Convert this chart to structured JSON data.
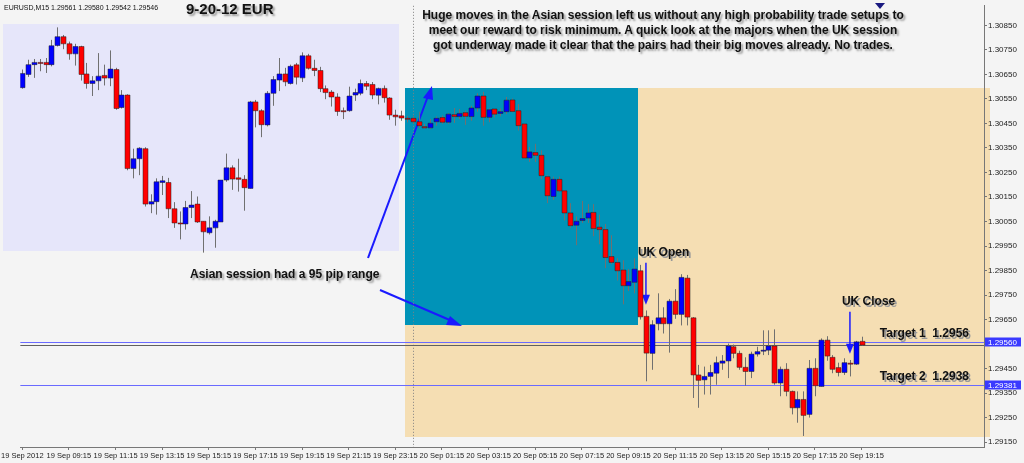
{
  "chart_data": {
    "type": "candlestick",
    "title": "9-20-12  EUR",
    "subtitle": "EURUSD,M15  1.29561 1.29580 1.29542 1.29546",
    "annotations": [
      "Asian session had a 95 pip range",
      "Huge moves in the Asian session left us without any high probability trade setups to meet our reward to risk minimum.  A quick look at the majors when the UK session got underway made it clear that the pairs had their big moves already.  No trades.",
      {
        "text": "UK Open",
        "x": "2012-09-20T10:00",
        "y": 1.2971
      },
      {
        "text": "UK Close",
        "x": "2012-09-20T18:45",
        "y": 1.2951
      },
      "1.29560",
      "1.29381"
    ],
    "x": [
      "2012-09-19T07:15",
      "2012-09-19T07:30",
      "2012-09-19T07:45",
      "2012-09-19T08:00",
      "2012-09-19T08:15",
      "2012-09-19T08:30",
      "2012-09-19T08:45",
      "2012-09-19T09:00",
      "2012-09-19T09:15",
      "2012-09-19T09:30",
      "2012-09-19T09:45",
      "2012-09-19T10:00",
      "2012-09-19T10:15",
      "2012-09-19T10:30",
      "2012-09-19T10:45",
      "2012-09-19T11:00",
      "2012-09-19T11:15",
      "2012-09-19T11:30",
      "2012-09-19T11:45",
      "2012-09-19T12:00",
      "2012-09-19T12:15",
      "2012-09-19T12:30",
      "2012-09-19T12:45",
      "2012-09-19T13:00",
      "2012-09-19T13:15",
      "2012-09-19T13:30",
      "2012-09-19T13:45",
      "2012-09-19T14:00",
      "2012-09-19T14:15",
      "2012-09-19T14:30",
      "2012-09-19T14:45",
      "2012-09-19T15:00",
      "2012-09-19T15:15",
      "2012-09-19T15:30",
      "2012-09-19T15:45",
      "2012-09-19T16:00",
      "2012-09-19T16:15",
      "2012-09-19T16:30",
      "2012-09-19T16:45",
      "2012-09-19T17:00",
      "2012-09-19T17:15",
      "2012-09-19T17:30",
      "2012-09-19T17:45",
      "2012-09-19T18:00",
      "2012-09-19T18:15",
      "2012-09-19T18:30",
      "2012-09-19T18:45",
      "2012-09-19T19:00",
      "2012-09-19T19:15",
      "2012-09-19T19:30",
      "2012-09-19T19:45",
      "2012-09-19T20:00",
      "2012-09-19T20:15",
      "2012-09-19T20:30",
      "2012-09-19T20:45",
      "2012-09-19T21:00",
      "2012-09-19T21:15",
      "2012-09-19T21:30",
      "2012-09-19T21:45",
      "2012-09-19T22:00",
      "2012-09-19T22:15",
      "2012-09-19T22:30",
      "2012-09-19T22:45",
      "2012-09-19T23:00",
      "2012-09-19T23:15",
      "2012-09-19T23:30",
      "2012-09-19T23:45",
      "2012-09-20T00:00",
      "2012-09-20T00:15",
      "2012-09-20T00:30",
      "2012-09-20T00:45",
      "2012-09-20T01:00",
      "2012-09-20T01:15",
      "2012-09-20T01:30",
      "2012-09-20T01:45",
      "2012-09-20T02:00",
      "2012-09-20T02:15",
      "2012-09-20T02:30",
      "2012-09-20T02:45",
      "2012-09-20T03:00",
      "2012-09-20T03:15",
      "2012-09-20T03:30",
      "2012-09-20T03:45",
      "2012-09-20T04:00",
      "2012-09-20T04:15",
      "2012-09-20T04:30",
      "2012-09-20T04:45",
      "2012-09-20T05:00",
      "2012-09-20T05:15",
      "2012-09-20T05:30",
      "2012-09-20T05:45",
      "2012-09-20T06:00",
      "2012-09-20T06:15",
      "2012-09-20T06:30",
      "2012-09-20T06:45",
      "2012-09-20T07:00",
      "2012-09-20T07:15",
      "2012-09-20T07:30",
      "2012-09-20T07:45",
      "2012-09-20T08:00",
      "2012-09-20T08:15",
      "2012-09-20T08:30",
      "2012-09-20T08:45",
      "2012-09-20T09:00",
      "2012-09-20T09:15",
      "2012-09-20T09:30",
      "2012-09-20T09:45",
      "2012-09-20T10:00",
      "2012-09-20T10:15",
      "2012-09-20T10:30",
      "2012-09-20T10:45",
      "2012-09-20T11:00",
      "2012-09-20T11:15",
      "2012-09-20T11:30",
      "2012-09-20T11:45",
      "2012-09-20T12:00",
      "2012-09-20T12:15",
      "2012-09-20T12:30",
      "2012-09-20T12:45",
      "2012-09-20T13:00",
      "2012-09-20T13:15",
      "2012-09-20T13:30",
      "2012-09-20T13:45",
      "2012-09-20T14:00",
      "2012-09-20T14:15",
      "2012-09-20T14:30",
      "2012-09-20T14:45",
      "2012-09-20T15:00",
      "2012-09-20T15:15",
      "2012-09-20T15:30",
      "2012-09-20T15:45",
      "2012-09-20T16:00",
      "2012-09-20T16:15",
      "2012-09-20T16:30",
      "2012-09-20T16:45",
      "2012-09-20T17:00",
      "2012-09-20T17:15",
      "2012-09-20T17:30",
      "2012-09-20T17:45",
      "2012-09-20T18:00",
      "2012-09-20T18:15",
      "2012-09-20T18:30",
      "2012-09-20T18:45",
      "2012-09-20T19:00",
      "2012-09-20T19:15"
    ],
    "ohlc": [
      [
        1.30596,
        1.3067,
        1.30592,
        1.30654
      ],
      [
        1.3065,
        1.3071,
        1.3064,
        1.3069
      ],
      [
        1.3069,
        1.30713,
        1.30636,
        1.30699
      ],
      [
        1.30699,
        1.30713,
        1.30663,
        1.30698
      ],
      [
        1.30699,
        1.30717,
        1.30656,
        1.3069
      ],
      [
        1.3069,
        1.30791,
        1.30683,
        1.30767
      ],
      [
        1.30768,
        1.30842,
        1.30764,
        1.30804
      ],
      [
        1.30804,
        1.30811,
        1.30753,
        1.30775
      ],
      [
        1.30775,
        1.30784,
        1.3071,
        1.30734
      ],
      [
        1.30734,
        1.30775,
        1.30686,
        1.30764
      ],
      [
        1.30764,
        1.30767,
        1.30625,
        1.3065
      ],
      [
        1.30652,
        1.30697,
        1.30592,
        1.30613
      ],
      [
        1.30613,
        1.30643,
        1.30562,
        1.30624
      ],
      [
        1.30624,
        1.30737,
        1.30586,
        1.30643
      ],
      [
        1.30646,
        1.3069,
        1.30605,
        1.30635
      ],
      [
        1.30635,
        1.30748,
        1.30602,
        1.30672
      ],
      [
        1.3067,
        1.30677,
        1.30506,
        1.30511
      ],
      [
        1.30515,
        1.30586,
        1.30511,
        1.30566
      ],
      [
        1.30566,
        1.30569,
        1.30259,
        1.30266
      ],
      [
        1.30266,
        1.30347,
        1.30226,
        1.30306
      ],
      [
        1.30306,
        1.30353,
        1.30239,
        1.30349
      ],
      [
        1.30347,
        1.30353,
        1.30111,
        1.30121
      ],
      [
        1.30121,
        1.30161,
        1.30084,
        1.30131
      ],
      [
        1.30131,
        1.30226,
        1.30078,
        1.30212
      ],
      [
        1.30209,
        1.30236,
        1.30158,
        1.30216
      ],
      [
        1.30209,
        1.30228,
        1.30064,
        1.30102
      ],
      [
        1.30102,
        1.30129,
        1.30024,
        1.30044
      ],
      [
        1.30044,
        1.30091,
        1.29977,
        1.30041
      ],
      [
        1.3004,
        1.30134,
        1.30017,
        1.30107
      ],
      [
        1.30107,
        1.30174,
        1.30064,
        1.30117
      ],
      [
        1.30121,
        1.30152,
        1.30044,
        1.30048
      ],
      [
        1.30051,
        1.30051,
        1.29923,
        1.30008
      ],
      [
        1.30004,
        1.30071,
        1.29997,
        1.30024
      ],
      [
        1.30024,
        1.30057,
        1.29943,
        1.30051
      ],
      [
        1.30048,
        1.30219,
        1.30048,
        1.30219
      ],
      [
        1.30219,
        1.30327,
        1.30212,
        1.30269
      ],
      [
        1.30269,
        1.30279,
        1.30179,
        1.30223
      ],
      [
        1.30228,
        1.30306,
        1.30172,
        1.30222
      ],
      [
        1.30222,
        1.30239,
        1.30094,
        1.30188
      ],
      [
        1.30185,
        1.30542,
        1.30185,
        1.30538
      ],
      [
        1.30538,
        1.30546,
        1.30434,
        1.30502
      ],
      [
        1.30502,
        1.30508,
        1.30394,
        1.30445
      ],
      [
        1.30444,
        1.30582,
        1.30438,
        1.30573
      ],
      [
        1.30573,
        1.30643,
        1.30522,
        1.30629
      ],
      [
        1.30627,
        1.30717,
        1.30582,
        1.30652
      ],
      [
        1.30652,
        1.30677,
        1.30602,
        1.3062
      ],
      [
        1.30613,
        1.3069,
        1.30609,
        1.30683
      ],
      [
        1.30689,
        1.30697,
        1.30609,
        1.30639
      ],
      [
        1.30636,
        1.3074,
        1.30619,
        1.30726
      ],
      [
        1.30726,
        1.30734,
        1.3067,
        1.30675
      ],
      [
        1.30675,
        1.3071,
        1.30643,
        1.30666
      ],
      [
        1.30666,
        1.30681,
        1.30578,
        1.30592
      ],
      [
        1.30592,
        1.30605,
        1.30549,
        1.30576
      ],
      [
        1.30578,
        1.30586,
        1.30519,
        1.30558
      ],
      [
        1.30558,
        1.30573,
        1.30481,
        1.30499
      ],
      [
        1.30502,
        1.30515,
        1.30468,
        1.305
      ],
      [
        1.30502,
        1.306,
        1.30498,
        1.30562
      ],
      [
        1.30566,
        1.30592,
        1.30542,
        1.30576
      ],
      [
        1.30573,
        1.30629,
        1.30565,
        1.30613
      ],
      [
        1.30613,
        1.30623,
        1.30586,
        1.30602
      ],
      [
        1.30609,
        1.30619,
        1.30549,
        1.30566
      ],
      [
        1.30565,
        1.30596,
        1.30528,
        1.30593
      ],
      [
        1.30593,
        1.30605,
        1.30535,
        1.30555
      ],
      [
        1.30554,
        1.30557,
        1.30465,
        1.30484
      ],
      [
        1.30484,
        1.30506,
        1.30441,
        1.30477
      ],
      [
        1.30481,
        1.30502,
        1.30461,
        1.30472
      ],
      [
        1.30471,
        1.30481,
        1.30454,
        1.30469
      ],
      [
        1.30471,
        1.30481,
        1.30448,
        1.30457
      ],
      [
        1.30457,
        1.30498,
        1.3043,
        1.30441
      ],
      [
        1.30437,
        1.30448,
        1.30428,
        1.30432
      ],
      [
        1.30432,
        1.30468,
        1.30428,
        1.30451
      ],
      [
        1.30457,
        1.30479,
        1.30441,
        1.30471
      ],
      [
        1.30474,
        1.30482,
        1.30448,
        1.30455
      ],
      [
        1.30455,
        1.30492,
        1.30448,
        1.30488
      ],
      [
        1.30486,
        1.30513,
        1.30452,
        1.30478
      ],
      [
        1.30478,
        1.30509,
        1.30468,
        1.30491
      ],
      [
        1.30494,
        1.30502,
        1.30444,
        1.30479
      ],
      [
        1.30478,
        1.30522,
        1.30461,
        1.30513
      ],
      [
        1.30513,
        1.30573,
        1.30498,
        1.30562
      ],
      [
        1.30562,
        1.30579,
        1.30441,
        1.30475
      ],
      [
        1.30475,
        1.30511,
        1.30455,
        1.30506
      ],
      [
        1.30509,
        1.30511,
        1.30475,
        1.30488
      ],
      [
        1.30491,
        1.30511,
        1.30479,
        1.30498
      ],
      [
        1.30498,
        1.30558,
        1.30488,
        1.30545
      ],
      [
        1.30546,
        1.30552,
        1.30495,
        1.30499
      ],
      [
        1.30502,
        1.30529,
        1.30421,
        1.30441
      ],
      [
        1.30448,
        1.30451,
        1.30307,
        1.30309
      ],
      [
        1.30309,
        1.30354,
        1.30293,
        1.30334
      ],
      [
        1.30331,
        1.30367,
        1.30293,
        1.3032
      ],
      [
        1.3032,
        1.3034,
        1.30223,
        1.30237
      ],
      [
        1.30233,
        1.30239,
        1.30125,
        1.30155
      ],
      [
        1.30152,
        1.30233,
        1.30138,
        1.30222
      ],
      [
        1.30222,
        1.30233,
        1.30169,
        1.30175
      ],
      [
        1.30175,
        1.30179,
        1.30054,
        1.30085
      ],
      [
        1.30085,
        1.30125,
        1.30024,
        1.30033
      ],
      [
        1.30035,
        1.30071,
        1.29953,
        1.30051
      ],
      [
        1.30054,
        1.30134,
        1.30044,
        1.30062
      ],
      [
        1.30064,
        1.30121,
        1.30044,
        1.30085
      ],
      [
        1.30087,
        1.30121,
        1.2999,
        1.30021
      ],
      [
        1.30027,
        1.30078,
        1.29957,
        1.30017
      ],
      [
        1.30017,
        1.3004,
        1.2986,
        1.29903
      ],
      [
        1.29907,
        1.29994,
        1.29876,
        1.29883
      ],
      [
        1.29883,
        1.299,
        1.29809,
        1.29849
      ],
      [
        1.29852,
        1.29892,
        1.29712,
        1.29788
      ],
      [
        1.29788,
        1.29856,
        1.29766,
        1.29805
      ],
      [
        1.29802,
        1.299,
        1.29757,
        1.29856
      ],
      [
        1.29849,
        1.29873,
        1.2965,
        1.29661
      ],
      [
        1.29663,
        1.29687,
        1.29398,
        1.29513
      ],
      [
        1.29512,
        1.29647,
        1.29445,
        1.29629
      ],
      [
        1.29633,
        1.29757,
        1.29606,
        1.29657
      ],
      [
        1.29657,
        1.297,
        1.29593,
        1.29633
      ],
      [
        1.29633,
        1.29734,
        1.29515,
        1.29725
      ],
      [
        1.29725,
        1.29774,
        1.29653,
        1.29671
      ],
      [
        1.29671,
        1.29835,
        1.29626,
        1.29822
      ],
      [
        1.29819,
        1.29832,
        1.29626,
        1.2966
      ],
      [
        1.29657,
        1.2966,
        1.2933,
        1.29424
      ],
      [
        1.29424,
        1.29465,
        1.2929,
        1.29402
      ],
      [
        1.29404,
        1.29458,
        1.29344,
        1.29418
      ],
      [
        1.29418,
        1.29465,
        1.29344,
        1.29434
      ],
      [
        1.29431,
        1.29499,
        1.29384,
        1.29474
      ],
      [
        1.29472,
        1.29505,
        1.29445,
        1.29481
      ],
      [
        1.29481,
        1.29552,
        1.29411,
        1.29542
      ],
      [
        1.29539,
        1.29548,
        1.29492,
        1.29512
      ],
      [
        1.29512,
        1.29523,
        1.29445,
        1.29455
      ],
      [
        1.29455,
        1.29496,
        1.2938,
        1.29438
      ],
      [
        1.29438,
        1.29519,
        1.29411,
        1.29509
      ],
      [
        1.29509,
        1.29539,
        1.29499,
        1.29519
      ],
      [
        1.29521,
        1.29606,
        1.29505,
        1.29525
      ],
      [
        1.29525,
        1.29606,
        1.29505,
        1.29542
      ],
      [
        1.29542,
        1.2961,
        1.29384,
        1.29391
      ],
      [
        1.29391,
        1.29458,
        1.29337,
        1.29447
      ],
      [
        1.29447,
        1.29472,
        1.29337,
        1.29357
      ],
      [
        1.29357,
        1.2936,
        1.29263,
        1.2929
      ],
      [
        1.2929,
        1.29357,
        1.29229,
        1.29324
      ],
      [
        1.29324,
        1.29357,
        1.29175,
        1.29259
      ],
      [
        1.29263,
        1.29485,
        1.2925,
        1.29451
      ],
      [
        1.29451,
        1.29492,
        1.29337,
        1.2938
      ],
      [
        1.29377,
        1.29573,
        1.29377,
        1.29566
      ],
      [
        1.29566,
        1.29582,
        1.29482,
        1.29501
      ],
      [
        1.29496,
        1.29505,
        1.29431,
        1.29447
      ],
      [
        1.29454,
        1.29474,
        1.29418,
        1.29434
      ],
      [
        1.29434,
        1.29492,
        1.29424,
        1.29474
      ],
      [
        1.29472,
        1.29485,
        1.29418,
        1.2947
      ],
      [
        1.29468,
        1.29563,
        1.29465,
        1.29559
      ],
      [
        1.29561,
        1.2958,
        1.29542,
        1.29546
      ]
    ],
    "colors": [
      "#0000ff",
      "#0000ff",
      "#0000ff",
      "#ff0000",
      "#ff0000",
      "#0000ff",
      "#0000ff",
      "#ff0000",
      "#ff0000",
      "#0000ff",
      "#ff0000",
      "#ff0000",
      "#0000ff",
      "#0000ff",
      "#ff0000",
      "#0000ff",
      "#ff0000",
      "#0000ff",
      "#ff0000",
      "#0000ff",
      "#0000ff",
      "#ff0000",
      "#0000ff",
      "#0000ff",
      "#0000ff",
      "#ff0000",
      "#ff0000",
      "#ff0000",
      "#0000ff",
      "#0000ff",
      "#ff0000",
      "#ff0000",
      "#0000ff",
      "#0000ff",
      "#0000ff",
      "#0000ff",
      "#ff0000",
      "#ff0000",
      "#ff0000",
      "#0000ff",
      "#ff0000",
      "#ff0000",
      "#0000ff",
      "#0000ff",
      "#0000ff",
      "#ff0000",
      "#0000ff",
      "#ff0000",
      "#0000ff",
      "#ff0000",
      "#ff0000",
      "#ff0000",
      "#ff0000",
      "#ff0000",
      "#ff0000",
      "#ff0000",
      "#0000ff",
      "#0000ff",
      "#0000ff",
      "#ff0000",
      "#ff0000",
      "#0000ff",
      "#ff0000",
      "#ff0000",
      "#ff0000",
      "#ff0000",
      "#ff0000",
      "#ff0000",
      "#ff0000",
      "#ff0000",
      "#0000ff",
      "#0000ff",
      "#ff0000",
      "#0000ff",
      "#ff0000",
      "#0000ff",
      "#ff0000",
      "#0000ff",
      "#0000ff",
      "#ff0000",
      "#0000ff",
      "#ff0000",
      "#0000ff",
      "#0000ff",
      "#ff0000",
      "#ff0000",
      "#ff0000",
      "#0000ff",
      "#ff0000",
      "#ff0000",
      "#ff0000",
      "#0000ff",
      "#ff0000",
      "#ff0000",
      "#ff0000",
      "#0000ff",
      "#0000ff",
      "#0000ff",
      "#ff0000",
      "#ff0000",
      "#ff0000",
      "#ff0000",
      "#ff0000",
      "#ff0000",
      "#0000ff",
      "#0000ff",
      "#ff0000",
      "#ff0000",
      "#0000ff",
      "#0000ff",
      "#ff0000",
      "#0000ff",
      "#ff0000",
      "#0000ff",
      "#ff0000",
      "#ff0000",
      "#ff0000",
      "#0000ff",
      "#0000ff",
      "#0000ff",
      "#0000ff",
      "#0000ff",
      "#ff0000",
      "#ff0000",
      "#ff0000",
      "#0000ff",
      "#0000ff",
      "#0000ff",
      "#0000ff",
      "#ff0000",
      "#0000ff",
      "#ff0000",
      "#ff0000",
      "#0000ff",
      "#ff0000",
      "#0000ff",
      "#ff0000",
      "#0000ff",
      "#ff0000",
      "#ff0000",
      "#ff0000",
      "#0000ff",
      "#ff0000",
      "#0000ff",
      "#ff0000"
    ],
    "xlim": [
      "2012-09-19T07:10",
      "2012-09-21T00:30"
    ],
    "xticks": [
      {
        "value": "2012-09-19T07:15",
        "label": "19 Sep 2012"
      },
      {
        "value": "2012-09-19T09:15",
        "label": "19 Sep 09:15"
      },
      {
        "value": "2012-09-19T11:15",
        "label": "19 Sep 11:15"
      },
      {
        "value": "2012-09-19T13:15",
        "label": "19 Sep 13:15"
      },
      {
        "value": "2012-09-19T15:15",
        "label": "19 Sep 15:15"
      },
      {
        "value": "2012-09-19T17:15",
        "label": "19 Sep 17:15"
      },
      {
        "value": "2012-09-19T19:15",
        "label": "19 Sep 19:15"
      },
      {
        "value": "2012-09-19T21:15",
        "label": "19 Sep 21:15"
      },
      {
        "value": "2012-09-19T23:15",
        "label": "19 Sep 23:15"
      },
      {
        "value": "2012-09-20T01:15",
        "label": "20 Sep 01:15"
      },
      {
        "value": "2012-09-20T03:15",
        "label": "20 Sep 03:15"
      },
      {
        "value": "2012-09-20T05:15",
        "label": "20 Sep 05:15"
      },
      {
        "value": "2012-09-20T07:15",
        "label": "20 Sep 07:15"
      },
      {
        "value": "2012-09-20T09:15",
        "label": "20 Sep 09:15"
      },
      {
        "value": "2012-09-20T11:15",
        "label": "20 Sep 11:15"
      },
      {
        "value": "2012-09-20T13:15",
        "label": "20 Sep 13:15"
      },
      {
        "value": "2012-09-20T15:15",
        "label": "20 Sep 15:15"
      },
      {
        "value": "2012-09-20T17:15",
        "label": "20 Sep 17:15"
      },
      {
        "value": "2012-09-20T19:15",
        "label": "20 Sep 19:15"
      }
    ],
    "ylim": [
      1.2913,
      1.3093
    ],
    "yticks": [
      {
        "value": 1.2915,
        "label": "1.29150"
      },
      {
        "value": 1.2925,
        "label": "1.29250"
      },
      {
        "value": 1.2935,
        "label": "1.29350"
      },
      {
        "value": 1.2945,
        "label": "1.29450"
      },
      {
        "value": 1.2955,
        "label": null
      },
      {
        "value": 1.2965,
        "label": "1.29650"
      },
      {
        "value": 1.2975,
        "label": "1.29750"
      },
      {
        "value": 1.2985,
        "label": "1.29850"
      },
      {
        "value": 1.2995,
        "label": "1.29950"
      },
      {
        "value": 1.3005,
        "label": "1.30050"
      },
      {
        "value": 1.3015,
        "label": "1.30150"
      },
      {
        "value": 1.3025,
        "label": "1.30250"
      },
      {
        "value": 1.3035,
        "label": "1.30350"
      },
      {
        "value": 1.3045,
        "label": "1.30450"
      },
      {
        "value": 1.3055,
        "label": "1.30550"
      },
      {
        "value": 1.3065,
        "label": "1.30650"
      },
      {
        "value": 1.3075,
        "label": "1.30750"
      },
      {
        "value": 1.3085,
        "label": "1.30850"
      }
    ],
    "ref_lines": [
      {
        "axis": "x",
        "value": "2012-09-20T00:00",
        "color": "#808080",
        "line_style": "dotted"
      },
      {
        "axis": "y",
        "value": 1.2956,
        "label": "Target 1  1.2956",
        "color": "#6a6aff"
      },
      {
        "axis": "y",
        "value": 1.29546,
        "color": "#606060"
      },
      {
        "axis": "y",
        "value": 1.29381,
        "label": "Target 2  1.2938",
        "color": "#6a6aff"
      }
    ],
    "grid": false,
    "legend": false
  }
}
